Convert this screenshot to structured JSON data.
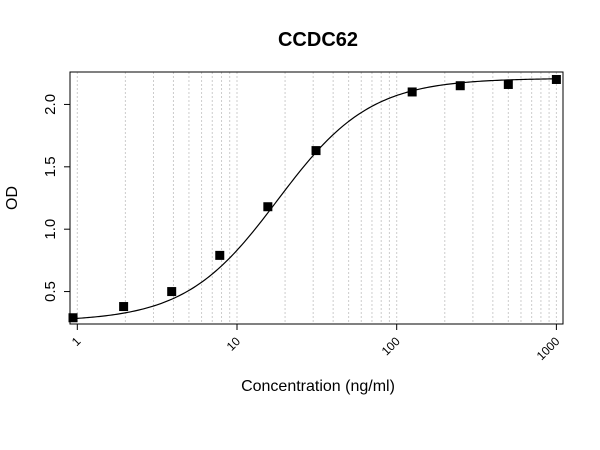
{
  "chart_data": {
    "type": "scatter",
    "title": "CCDC62",
    "xlabel": "Concentration (ng/ml)",
    "ylabel": "OD",
    "x_scale": "log",
    "xlim": [
      0.9,
      1100
    ],
    "ylim": [
      0.24,
      2.26
    ],
    "x_ticks": [
      1,
      10,
      100,
      1000
    ],
    "x_tick_labels": [
      "1",
      "10",
      "100",
      "1000"
    ],
    "y_ticks": [
      0.5,
      1.0,
      1.5,
      2.0
    ],
    "y_tick_labels": [
      "0.5",
      "1.0",
      "1.5",
      "2.0"
    ],
    "grid": true,
    "x": [
      0.94,
      1.95,
      3.9,
      7.8,
      15.6,
      31.25,
      125,
      250,
      500,
      1000
    ],
    "y": [
      0.29,
      0.38,
      0.5,
      0.79,
      1.18,
      1.63,
      2.1,
      2.15,
      2.16,
      2.2
    ],
    "fit": {
      "type": "4PL",
      "bottom": 0.26,
      "top": 2.21,
      "ec50": 18,
      "hill": 1.5
    },
    "colors": {
      "points": "#000000",
      "curve": "#000000",
      "grid": "#cccccc",
      "frame": "#000000"
    }
  }
}
